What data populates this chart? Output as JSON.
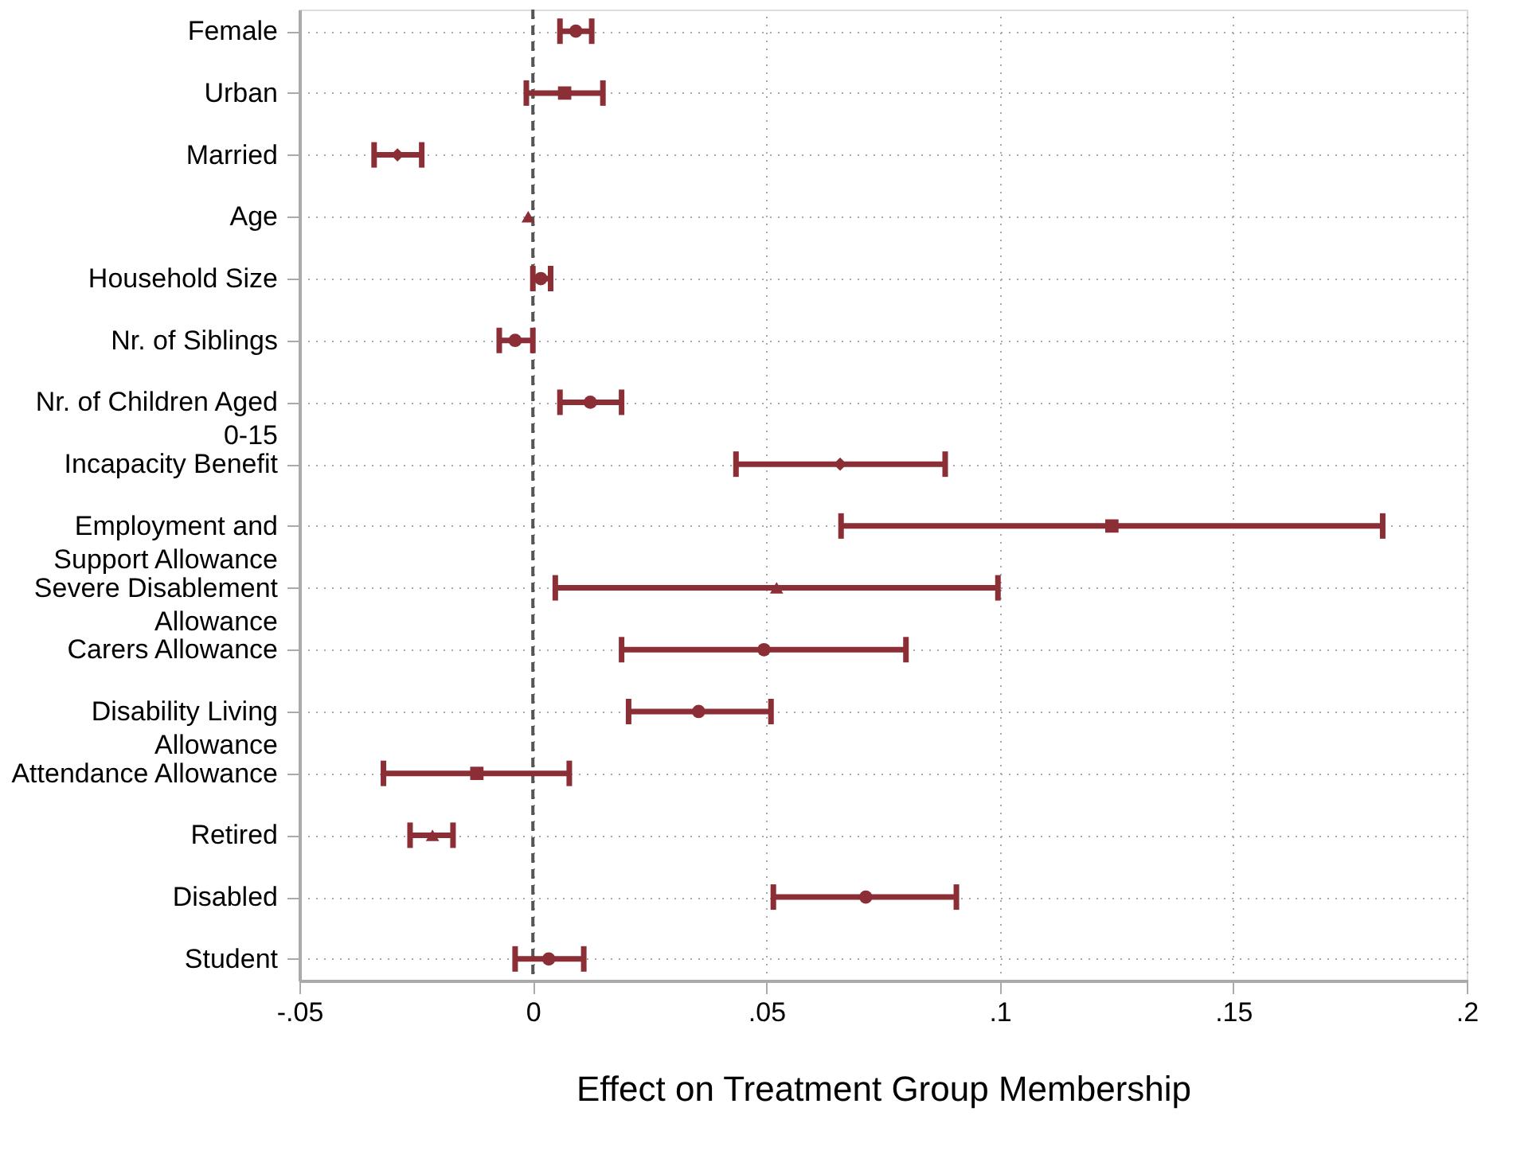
{
  "chart_data": {
    "type": "scatter",
    "orientation": "horizontal",
    "xlabel": "Effect on Treatment Group Membership",
    "categories": [
      "Female",
      "Urban",
      "Married",
      "Age",
      "Household Size",
      "Nr. of Siblings",
      "Nr. of Children Aged\n0-15",
      "Incapacity Benefit",
      "Employment and\nSupport Allowance",
      "Severe Disablement\nAllowance",
      "Carers Allowance",
      "Disability Living\nAllowance",
      "Attendance Allowance",
      "Retired",
      "Disabled",
      "Student"
    ],
    "series": [
      {
        "color": "#8b2e35",
        "marker": "circle",
        "values": [
          0.0092,
          null,
          null,
          null,
          0.0017,
          -0.0038,
          0.0123,
          null,
          null,
          null,
          0.0495,
          0.0355,
          null,
          null,
          0.0713,
          0.0034
        ],
        "errors": [
          [
            0.0058,
            0.0126
          ],
          null,
          null,
          null,
          [
            0.0,
            0.0038
          ],
          [
            -0.0072,
            0.0
          ],
          [
            0.0058,
            0.019
          ],
          null,
          null,
          null,
          [
            0.019,
            0.0799
          ],
          [
            0.0205,
            0.051
          ],
          null,
          null,
          [
            0.0515,
            0.0907
          ],
          [
            -0.0038,
            0.0109
          ]
        ]
      },
      {
        "color": "#8b2e35",
        "marker": "square",
        "values": [
          null,
          0.0068,
          null,
          null,
          null,
          null,
          null,
          null,
          0.124,
          null,
          null,
          null,
          -0.012,
          null,
          null,
          null
        ],
        "errors": [
          null,
          [
            -0.0014,
            0.015
          ],
          null,
          null,
          null,
          null,
          null,
          null,
          [
            0.066,
            0.182
          ],
          null,
          null,
          null,
          [
            -0.032,
            0.0078
          ],
          null,
          null,
          null
        ]
      },
      {
        "color": "#8b2e35",
        "marker": "diamond",
        "values": [
          null,
          null,
          -0.029,
          null,
          null,
          null,
          null,
          0.0658,
          null,
          null,
          null,
          null,
          null,
          null,
          null,
          null
        ],
        "errors": [
          null,
          null,
          [
            -0.034,
            -0.0238
          ],
          null,
          null,
          null,
          null,
          [
            0.0435,
            0.0883
          ],
          null,
          null,
          null,
          null,
          null,
          null,
          null,
          null
        ]
      },
      {
        "color": "#8b2e35",
        "marker": "triangle",
        "values": [
          null,
          null,
          null,
          -0.001,
          null,
          null,
          null,
          null,
          null,
          0.0522,
          null,
          null,
          null,
          -0.0215,
          null,
          null
        ],
        "errors": [
          null,
          null,
          null,
          null,
          null,
          null,
          null,
          null,
          null,
          [
            0.0048,
            0.0996
          ],
          null,
          null,
          null,
          [
            -0.0263,
            -0.0171
          ],
          null,
          null
        ]
      }
    ],
    "xlim": [
      -0.05,
      0.2
    ],
    "xticks": [
      {
        "value": -0.05,
        "label": "-.05"
      },
      0,
      {
        "value": 0.05,
        "label": ".05"
      },
      {
        "value": 0.1,
        "label": ".1"
      },
      {
        "value": 0.15,
        "label": ".15"
      },
      {
        "value": 0.2,
        "label": ".2"
      }
    ],
    "ref_lines": [
      {
        "axis": "x",
        "value": 0,
        "color": "#555555",
        "line_style": "dashed"
      }
    ],
    "grid": true
  }
}
